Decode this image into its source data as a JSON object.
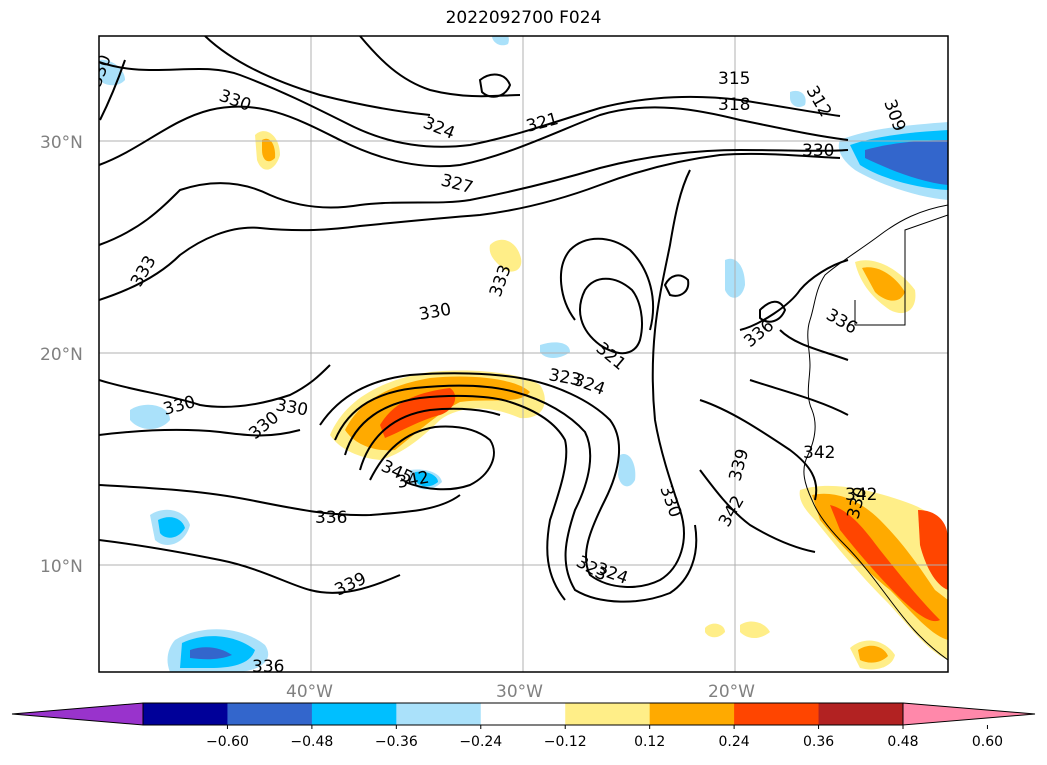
{
  "title": "2022092700 F024",
  "map": {
    "lat_ticks": [
      "30°N",
      "20°N",
      "10°N"
    ],
    "lon_ticks": [
      "40°W",
      "30°W",
      "20°W"
    ],
    "contour_labels": [
      "330",
      "330",
      "324",
      "321",
      "315",
      "318",
      "312",
      "309",
      "330",
      "327",
      "333",
      "333",
      "330",
      "321",
      "324",
      "323",
      "330",
      "330",
      "330",
      "336",
      "336",
      "345",
      "342",
      "336",
      "339",
      "330",
      "339",
      "342",
      "342",
      "342",
      "342",
      "323",
      "324",
      "336",
      "330"
    ]
  },
  "colorbar": {
    "colors": [
      "#9933cc",
      "#000099",
      "#3366cc",
      "#00bfff",
      "#aae1fa",
      "#ffffff",
      "#ffee88",
      "#ffaa00",
      "#ff4500",
      "#b22222",
      "#ff88aa"
    ],
    "ticks": [
      "−0.60",
      "−0.48",
      "−0.36",
      "−0.24",
      "−0.12",
      "0.12",
      "0.24",
      "0.36",
      "0.48",
      "0.60"
    ]
  }
}
